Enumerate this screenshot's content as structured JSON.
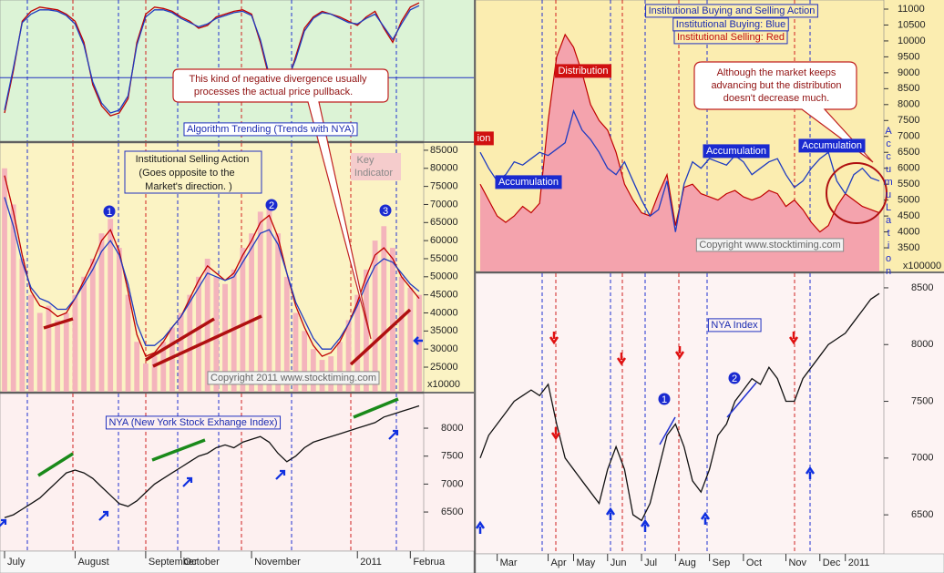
{
  "chart_data": [
    {
      "type": "line",
      "title": "Algorithm Trending (Trends with NYA)",
      "annotations": [
        "This kind of negative divergence usually",
        "processes the actual price pullback."
      ],
      "ylim": [
        0,
        100
      ],
      "hline": 45,
      "series": [
        {
          "name": "Trend",
          "color": "#c00000",
          "kind": "line",
          "values": [
            20,
            50,
            85,
            92,
            95,
            94,
            93,
            90,
            85,
            70,
            40,
            25,
            18,
            20,
            30,
            70,
            90,
            95,
            94,
            92,
            88,
            85,
            80,
            82,
            88,
            90,
            92,
            93,
            90,
            70,
            45,
            35,
            40,
            60,
            80,
            88,
            92,
            90,
            88,
            85,
            82,
            88,
            92,
            80,
            70,
            85,
            95,
            98
          ]
        },
        {
          "name": "NYA",
          "color": "#1f3cc0",
          "kind": "line",
          "values": [
            22,
            52,
            84,
            90,
            93,
            93,
            92,
            89,
            83,
            68,
            42,
            27,
            20,
            22,
            32,
            68,
            88,
            93,
            93,
            91,
            87,
            84,
            81,
            83,
            87,
            89,
            91,
            92,
            89,
            72,
            47,
            37,
            42,
            58,
            78,
            87,
            91,
            90,
            87,
            84,
            83,
            87,
            90,
            81,
            72,
            83,
            93,
            96
          ]
        }
      ]
    },
    {
      "type": "bar",
      "title": [
        "Institutional Selling Action",
        "(Goes opposite to the",
        "Market's direction. )"
      ],
      "annotations": [
        "Key",
        "Indicator",
        "Copyright 2011 www.stocktiming.com",
        "x10000"
      ],
      "markers": [
        "1",
        "2",
        "3"
      ],
      "ylim": [
        18200,
        87000
      ],
      "yticks": [
        25000,
        30000,
        35000,
        40000,
        45000,
        50000,
        55000,
        60000,
        65000,
        70000,
        75000,
        80000,
        85000
      ],
      "series": [
        {
          "name": "Selling",
          "color": "#f4b4bc",
          "kind": "bar",
          "values": [
            80000,
            70000,
            55000,
            45000,
            40000,
            42000,
            38000,
            40000,
            45000,
            50000,
            55000,
            62000,
            66000,
            58000,
            45000,
            32000,
            26000,
            28000,
            32000,
            36000,
            40000,
            45000,
            50000,
            55000,
            50000,
            48000,
            52000,
            58000,
            62000,
            68000,
            70000,
            62000,
            50000,
            40000,
            35000,
            30000,
            27000,
            28000,
            32000,
            38000,
            45000,
            52000,
            60000,
            64000,
            58000,
            50000,
            47000,
            45000
          ]
        },
        {
          "name": "Fast",
          "color": "#c00000",
          "kind": "line",
          "values": [
            78000,
            68000,
            56000,
            46000,
            42000,
            41000,
            39000,
            40000,
            44000,
            49000,
            54000,
            60000,
            63000,
            57000,
            46000,
            34000,
            28000,
            29000,
            32000,
            36000,
            39000,
            44000,
            49000,
            53000,
            51000,
            49000,
            51000,
            56000,
            60000,
            65000,
            67000,
            61000,
            51000,
            42000,
            36000,
            31000,
            28000,
            29000,
            32000,
            37000,
            43000,
            50000,
            56000,
            58000,
            55000,
            50000,
            47000,
            44000
          ]
        },
        {
          "name": "Slow",
          "color": "#1f3cc0",
          "kind": "line",
          "values": [
            72000,
            64000,
            54000,
            47000,
            44000,
            43000,
            41000,
            41000,
            44000,
            48000,
            52000,
            57000,
            60000,
            56000,
            48000,
            37000,
            31000,
            31000,
            33000,
            36000,
            39000,
            43000,
            47000,
            51000,
            50000,
            49000,
            50000,
            54000,
            58000,
            62000,
            63000,
            59000,
            51000,
            43000,
            38000,
            33000,
            30000,
            30000,
            33000,
            37000,
            42000,
            48000,
            53000,
            55000,
            54000,
            51000,
            48000,
            46000
          ]
        }
      ]
    },
    {
      "type": "line",
      "title": "NYA (New York Stock Exhange Index)",
      "ylim": [
        5800,
        8620
      ],
      "yticks": [
        6500,
        7000,
        7500,
        8000
      ],
      "categories": [
        "July",
        null,
        null,
        null,
        null,
        null,
        null,
        null,
        "August",
        null,
        null,
        null,
        null,
        null,
        null,
        null,
        "September",
        null,
        null,
        null,
        "October",
        null,
        null,
        null,
        null,
        null,
        null,
        null,
        "November",
        null,
        null,
        null,
        null,
        null,
        null,
        null,
        null,
        null,
        null,
        null,
        "2011",
        null,
        null,
        null,
        null,
        null,
        "Februa",
        null
      ],
      "series": [
        {
          "name": "NYA",
          "color": "#111111",
          "kind": "line",
          "values": [
            6400,
            6450,
            6550,
            6650,
            6750,
            6900,
            7050,
            7200,
            7250,
            7200,
            7100,
            6950,
            6800,
            6650,
            6600,
            6700,
            6850,
            7000,
            7100,
            7200,
            7300,
            7400,
            7500,
            7550,
            7650,
            7700,
            7650,
            7750,
            7800,
            7850,
            7750,
            7550,
            7400,
            7500,
            7650,
            7750,
            7800,
            7850,
            7900,
            7950,
            8000,
            8050,
            8100,
            8200,
            8250,
            8300,
            8350,
            8400
          ]
        }
      ]
    },
    {
      "type": "area",
      "title": [
        "Institutional Buying and Selling Action",
        "Institutional Buying: Blue",
        "Institutional Selling: Red"
      ],
      "annotations": [
        "Distribution",
        "ion",
        "Accumulation",
        "Accumulation",
        "Accumulation",
        "Although the market keeps",
        "advancing but the distribution",
        "doesn't decrease much.",
        "Copyright www.stocktiming.com",
        "x100000",
        "AccumuLation"
      ],
      "ylim": [
        2757,
        11286
      ],
      "yticks": [
        3500,
        4000,
        4500,
        5000,
        5500,
        6000,
        6500,
        7000,
        7500,
        8000,
        8500,
        9000,
        9500,
        10000,
        10500,
        11000
      ],
      "series": [
        {
          "name": "Institutional Selling",
          "color": "#c00000",
          "kind": "area",
          "values": [
            5500,
            5000,
            4500,
            4300,
            4500,
            4800,
            4600,
            4900,
            7500,
            9500,
            10200,
            9800,
            9000,
            8000,
            7500,
            7200,
            6500,
            5500,
            5000,
            4600,
            4500,
            5200,
            5800,
            4200,
            5400,
            5500,
            5200,
            5100,
            5000,
            5200,
            5300,
            5100,
            5000,
            5100,
            5300,
            5200,
            4800,
            5000,
            4700,
            4300,
            4000,
            4200,
            4800,
            5200,
            5000,
            4800,
            4700,
            4600
          ]
        },
        {
          "name": "Institutional Buying",
          "color": "#1f3cc0",
          "kind": "line",
          "values": [
            6500,
            6000,
            5600,
            5800,
            6200,
            6100,
            6300,
            6500,
            6400,
            6600,
            6800,
            7800,
            7200,
            6900,
            6500,
            6000,
            5800,
            6200,
            5600,
            5000,
            4500,
            4700,
            5600,
            4000,
            5500,
            6200,
            6000,
            6300,
            6200,
            6100,
            6400,
            6200,
            5800,
            6000,
            6200,
            6300,
            5800,
            5400,
            5600,
            6000,
            6300,
            6500,
            5600,
            5200,
            5800,
            6000,
            5700,
            5600
          ]
        }
      ]
    },
    {
      "type": "line",
      "title": "NYA Index",
      "markers": [
        "1",
        "2"
      ],
      "ylim": [
        6156,
        8628
      ],
      "yticks": [
        6500,
        7000,
        7500,
        8000,
        8500
      ],
      "categories": [
        null,
        null,
        "Mar",
        null,
        null,
        null,
        null,
        null,
        "Apr",
        null,
        null,
        "May",
        null,
        null,
        null,
        "Jun",
        null,
        null,
        null,
        "Jul",
        null,
        null,
        null,
        "Aug",
        null,
        null,
        null,
        "Sep",
        null,
        null,
        null,
        "Oct",
        null,
        null,
        null,
        null,
        "Nov",
        null,
        null,
        null,
        "Dec",
        null,
        null,
        "2011",
        null,
        null,
        null,
        null
      ],
      "series": [
        {
          "name": "NYA",
          "color": "#111111",
          "kind": "line",
          "values": [
            7000,
            7200,
            7300,
            7400,
            7500,
            7550,
            7600,
            7550,
            7650,
            7300,
            7000,
            6900,
            6800,
            6700,
            6600,
            6900,
            7100,
            6900,
            6500,
            6450,
            6600,
            6900,
            7200,
            7300,
            7100,
            6800,
            6700,
            6900,
            7200,
            7300,
            7500,
            7600,
            7700,
            7650,
            7800,
            7700,
            7500,
            7500,
            7700,
            7800,
            7900,
            8000,
            8050,
            8100,
            8200,
            8300,
            8400,
            8450
          ]
        }
      ]
    }
  ]
}
